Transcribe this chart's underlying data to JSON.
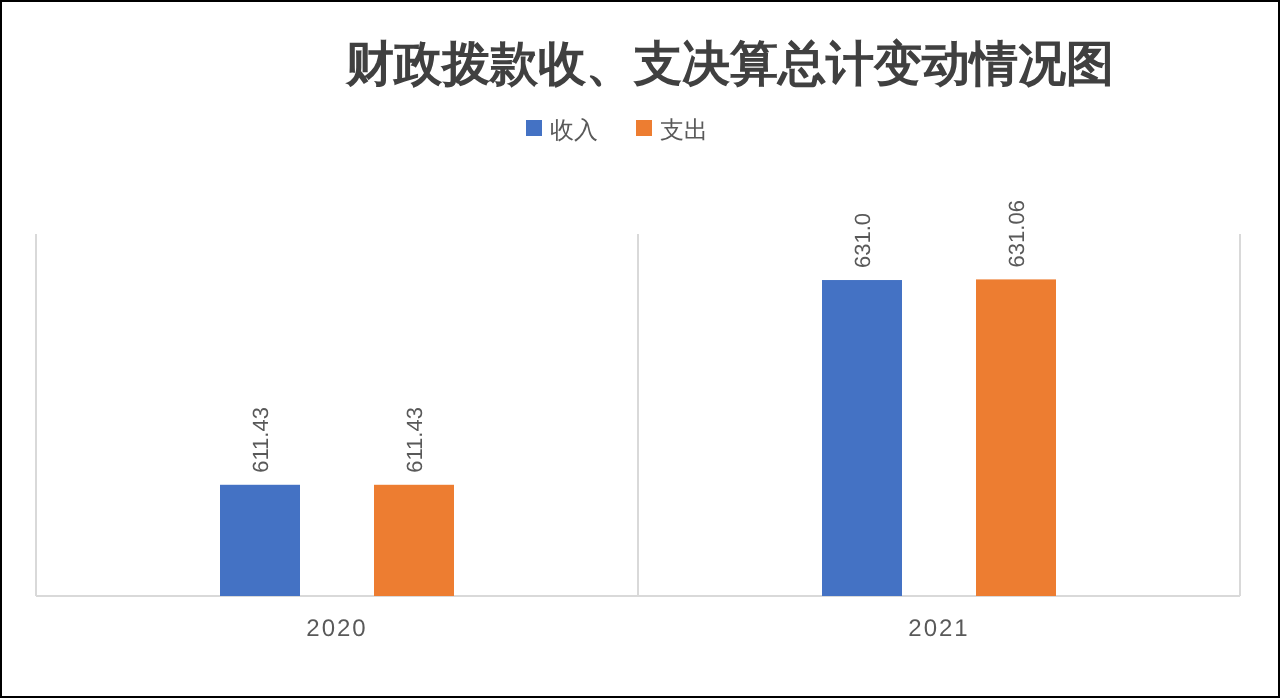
{
  "chart_data": {
    "type": "bar",
    "title": "财政拨款收、支决算总计变动情况图",
    "categories": [
      "2020",
      "2021"
    ],
    "series": [
      {
        "name": "收入",
        "color": "#4472c4",
        "values": [
          611.43,
          631.0
        ],
        "value_labels": [
          "611.43",
          "631.0"
        ]
      },
      {
        "name": "支出",
        "color": "#ed7d31",
        "values": [
          611.43,
          631.06
        ],
        "value_labels": [
          "611.43",
          "631.06"
        ]
      }
    ],
    "ylim": [
      600.8,
      635.4
    ],
    "tick_labels": "x",
    "legend": "top"
  }
}
